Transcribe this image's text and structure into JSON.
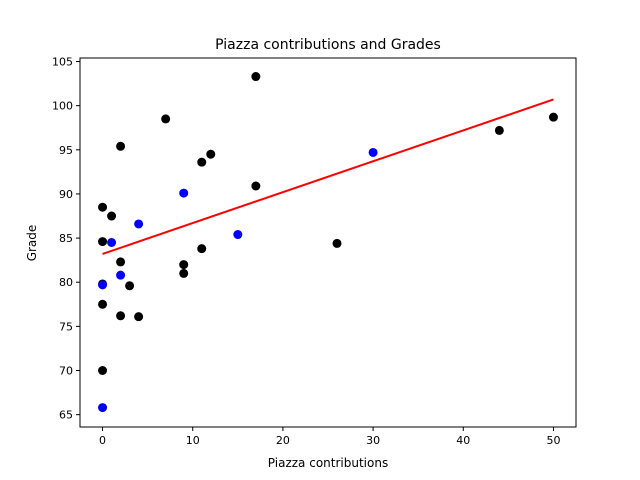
{
  "chart_data": {
    "type": "scatter",
    "title": "Piazza contributions and Grades",
    "xlabel": "Piazza contributions",
    "ylabel": "Grade",
    "xlim": [
      -2.5,
      52.5
    ],
    "ylim": [
      63.6,
      105.4
    ],
    "x_ticks": [
      0,
      10,
      20,
      30,
      40,
      50
    ],
    "y_ticks": [
      65,
      70,
      75,
      80,
      85,
      90,
      95,
      100,
      105
    ],
    "grid": false,
    "series": [
      {
        "color": "#000000",
        "points": [
          {
            "x": 0,
            "y": 88.5
          },
          {
            "x": 0,
            "y": 84.6
          },
          {
            "x": 0,
            "y": 79.8
          },
          {
            "x": 0,
            "y": 77.5
          },
          {
            "x": 0,
            "y": 70.0
          },
          {
            "x": 1,
            "y": 87.5
          },
          {
            "x": 2,
            "y": 95.4
          },
          {
            "x": 2,
            "y": 82.3
          },
          {
            "x": 2,
            "y": 76.2
          },
          {
            "x": 3,
            "y": 79.6
          },
          {
            "x": 4,
            "y": 76.1
          },
          {
            "x": 7,
            "y": 98.5
          },
          {
            "x": 9,
            "y": 82.0
          },
          {
            "x": 9,
            "y": 81.0
          },
          {
            "x": 11,
            "y": 93.6
          },
          {
            "x": 11,
            "y": 83.8
          },
          {
            "x": 12,
            "y": 94.5
          },
          {
            "x": 17,
            "y": 103.3
          },
          {
            "x": 17,
            "y": 90.9
          },
          {
            "x": 26,
            "y": 84.4
          },
          {
            "x": 44,
            "y": 97.2
          },
          {
            "x": 50,
            "y": 98.7
          }
        ]
      },
      {
        "color": "#0000ff",
        "points": [
          {
            "x": 0,
            "y": 79.7
          },
          {
            "x": 0,
            "y": 65.8
          },
          {
            "x": 1,
            "y": 84.5
          },
          {
            "x": 2,
            "y": 80.8
          },
          {
            "x": 4,
            "y": 86.6
          },
          {
            "x": 9,
            "y": 90.1
          },
          {
            "x": 15,
            "y": 85.4
          },
          {
            "x": 30,
            "y": 94.7
          }
        ]
      }
    ],
    "trend_line": {
      "color": "#ff0000",
      "points": [
        {
          "x": 0,
          "y": 83.2
        },
        {
          "x": 50,
          "y": 100.7
        }
      ]
    }
  }
}
